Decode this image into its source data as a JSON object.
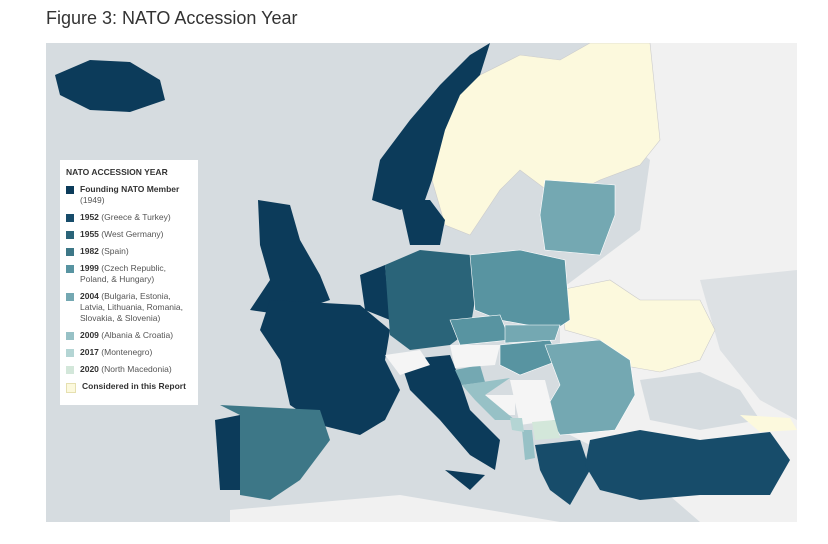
{
  "title": "Figure 3: NATO Accession Year",
  "legend": {
    "title": "NATO ACCESSION YEAR",
    "items": [
      {
        "label": "Founding NATO Member",
        "note": "(1949)",
        "color": "#0c3b5a"
      },
      {
        "label": "1952",
        "note": "(Greece & Turkey)",
        "color": "#174c6a"
      },
      {
        "label": "1955",
        "note": "(West Germany)",
        "color": "#2a6479"
      },
      {
        "label": "1982",
        "note": "(Spain)",
        "color": "#3d7787"
      },
      {
        "label": "1999",
        "note": "(Czech Republic, Poland, & Hungary)",
        "color": "#5894a1"
      },
      {
        "label": "2004",
        "note": "(Bulgaria, Estonia, Latvia, Lithuania, Romania, Slovakia, & Slovenia)",
        "color": "#74a8b2"
      },
      {
        "label": "2009",
        "note": "(Albania & Croatia)",
        "color": "#97c1c6"
      },
      {
        "label": "2017",
        "note": "(Montenegro)",
        "color": "#b4d5d4"
      },
      {
        "label": "2020",
        "note": "(North Macedonia)",
        "color": "#d3e7da"
      },
      {
        "label": "Considered in this Report",
        "color": "#fcf9dd"
      }
    ]
  }
}
